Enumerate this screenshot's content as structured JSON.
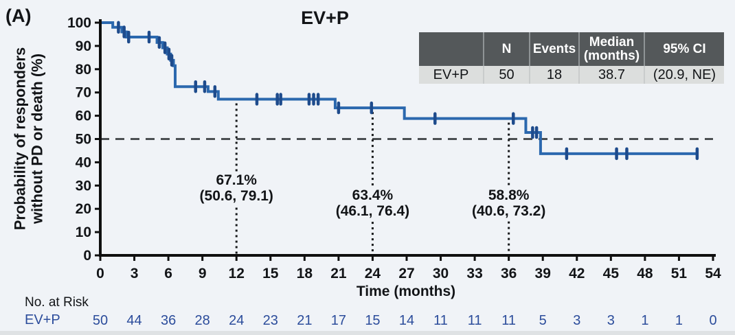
{
  "panel_label": "(A)",
  "title": "EV+P",
  "colors": {
    "background": "#f0f3f7",
    "curve": "#2b68ae",
    "censor_mark": "#1e4b8c",
    "axis": "#0f0f0f",
    "reference_dash": "#4b4f52",
    "dotted_line": "#16181a",
    "at_risk_text": "#2b4c9b",
    "table_header_bg": "#54585a",
    "table_row_bg": "#dcdedd"
  },
  "summary_table": {
    "headers": [
      "",
      "N",
      "Events",
      "Median\n(months)",
      "95% CI"
    ],
    "rows": [
      {
        "group": "EV+P",
        "n": "50",
        "events": "18",
        "median_months": "38.7",
        "ci_95": "(20.9, NE)"
      }
    ]
  },
  "chart_data": {
    "type": "line",
    "subtype": "kaplan-meier-step",
    "title": "EV+P",
    "xlabel": "Time (months)",
    "ylabel_lines": [
      "Probability of responders",
      "without PD or death (%)"
    ],
    "xlim": [
      0,
      54
    ],
    "ylim": [
      0,
      100
    ],
    "xticks": [
      0,
      3,
      6,
      9,
      12,
      15,
      18,
      21,
      24,
      27,
      30,
      33,
      36,
      39,
      42,
      45,
      48,
      51,
      54
    ],
    "yticks": [
      0,
      10,
      20,
      30,
      40,
      50,
      60,
      70,
      80,
      90,
      100
    ],
    "grid": false,
    "reference_line_y": 50,
    "series": [
      {
        "name": "EV+P",
        "start": [
          0,
          100
        ],
        "steps": [
          [
            1.1,
            98
          ],
          [
            1.9,
            96
          ],
          [
            2.3,
            93.8
          ],
          [
            5.0,
            91.5
          ],
          [
            5.5,
            89.2
          ],
          [
            5.9,
            86.5
          ],
          [
            6.2,
            83.8
          ],
          [
            6.45,
            81.5
          ],
          [
            6.6,
            72.5
          ],
          [
            9.5,
            70.4
          ],
          [
            10.4,
            67.1
          ],
          [
            20.7,
            63.4
          ],
          [
            26.8,
            58.8
          ],
          [
            37.5,
            52.8
          ],
          [
            38.8,
            43.7
          ]
        ],
        "end_x": 52.7,
        "censor_marks": [
          [
            1.6,
            98
          ],
          [
            2.1,
            96
          ],
          [
            2.5,
            93.8
          ],
          [
            4.3,
            93.8
          ],
          [
            5.2,
            91.5
          ],
          [
            5.7,
            89.2
          ],
          [
            6.05,
            86.5
          ],
          [
            6.3,
            83.8
          ],
          [
            8.4,
            72.5
          ],
          [
            9.2,
            72.5
          ],
          [
            10.1,
            70.4
          ],
          [
            13.8,
            67.1
          ],
          [
            15.6,
            67.1
          ],
          [
            15.9,
            67.1
          ],
          [
            18.4,
            67.1
          ],
          [
            18.8,
            67.1
          ],
          [
            19.2,
            67.1
          ],
          [
            21.0,
            63.4
          ],
          [
            23.9,
            63.4
          ],
          [
            29.5,
            58.8
          ],
          [
            36.4,
            58.8
          ],
          [
            38.1,
            52.8
          ],
          [
            38.45,
            52.8
          ],
          [
            41.1,
            43.7
          ],
          [
            45.5,
            43.7
          ],
          [
            46.4,
            43.7
          ],
          [
            52.6,
            43.7
          ]
        ]
      }
    ],
    "annotations": [
      {
        "x_month": 12,
        "level": 67.1,
        "rate": "67.1%",
        "ci": "(50.6, 79.1)"
      },
      {
        "x_month": 24,
        "level": 63.4,
        "rate": "63.4%",
        "ci": "(46.1, 76.4)"
      },
      {
        "x_month": 36,
        "level": 58.8,
        "rate": "58.8%",
        "ci": "(40.6, 73.2)"
      }
    ],
    "dotted_lines_x": [
      12,
      24,
      36
    ]
  },
  "at_risk": {
    "label": "No. at Risk",
    "rows": [
      {
        "name": "EV+P",
        "values": [
          50,
          44,
          36,
          28,
          24,
          23,
          21,
          17,
          15,
          14,
          11,
          11,
          11,
          5,
          3,
          3,
          1,
          1,
          0
        ]
      }
    ]
  }
}
